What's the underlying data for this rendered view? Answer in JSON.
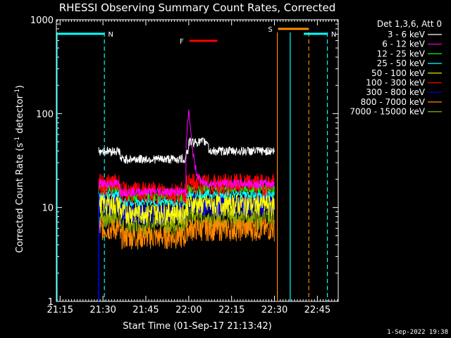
{
  "chart_data": {
    "type": "line",
    "title": "RHESSI Observing Summary Count Rates, Corrected",
    "xlabel": "Start Time (01-Sep-17 21:13:42)",
    "ylabel_main": "Corrected Count Rate (s",
    "ylabel_sup1": "-1",
    "ylabel_mid": " detector",
    "ylabel_sup2": "-1",
    "ylabel_end": ")",
    "yscale": "log",
    "ylim": [
      1,
      1000
    ],
    "xlim_min": [
      1273.7,
      1312
    ],
    "x_ticks": [
      {
        "label": "21:15",
        "min": 1275
      },
      {
        "label": "21:30",
        "min": 1290
      },
      {
        "label": "21:45",
        "min": 1305
      },
      {
        "label": "22:00",
        "min": 1320
      },
      {
        "label": "22:15",
        "min": 1335
      },
      {
        "label": "22:30",
        "min": 1350
      },
      {
        "label": "22:45",
        "min": 1365
      }
    ],
    "y_ticks": [
      {
        "label": "1",
        "v": 1
      },
      {
        "label": "10",
        "v": 10
      },
      {
        "label": "100",
        "v": 100
      },
      {
        "label": "1000",
        "v": 1000
      }
    ],
    "legend_header": "Det 1,3,6, Att 0",
    "series": [
      {
        "name": "3 - 6 keV",
        "color": "#ffffff",
        "level": 40
      },
      {
        "name": "6 - 12 keV",
        "color": "#ff00ff",
        "level": 18
      },
      {
        "name": "12 - 25 keV",
        "color": "#00ff00",
        "level": 16
      },
      {
        "name": "25 - 50 keV",
        "color": "#00ffff",
        "level": 14
      },
      {
        "name": "50 - 100 keV",
        "color": "#ffff00",
        "level": 11
      },
      {
        "name": "100 - 300 keV",
        "color": "#ff0000",
        "level": 18
      },
      {
        "name": "300 - 800 keV",
        "color": "#0000ff",
        "level": 11
      },
      {
        "name": "800 - 7000 keV",
        "color": "#ff8800",
        "level": 6
      },
      {
        "name": "7000 - 15000 keV",
        "color": "#88aa00",
        "level": 8
      }
    ],
    "data_window_min": [
      1288.5,
      1350
    ],
    "flag_bars": [
      {
        "label": "N",
        "color": "#00ffff",
        "start": 1273.7,
        "end": 1290.5
      },
      {
        "label": "N",
        "color": "#00ffff",
        "start": 1360,
        "end": 1368.5
      },
      {
        "label": "F",
        "color": "#ff0000",
        "start": 1320,
        "end": 1330
      },
      {
        "label": "S",
        "color": "#ff8800",
        "start": 1351,
        "end": 1362
      }
    ],
    "solid_lines": [
      {
        "color": "#00ffff",
        "min": 1273.7
      },
      {
        "color": "#ff8800",
        "min": 1351
      },
      {
        "color": "#00ffff",
        "min": 1355.5
      }
    ],
    "dashed_lines": [
      {
        "color": "#00ffff",
        "min": 1290.5
      },
      {
        "color": "#ff8800",
        "min": 1362
      },
      {
        "color": "#00ffff",
        "min": 1368.5
      }
    ],
    "timestamp": "1-Sep-2022 19:38"
  }
}
